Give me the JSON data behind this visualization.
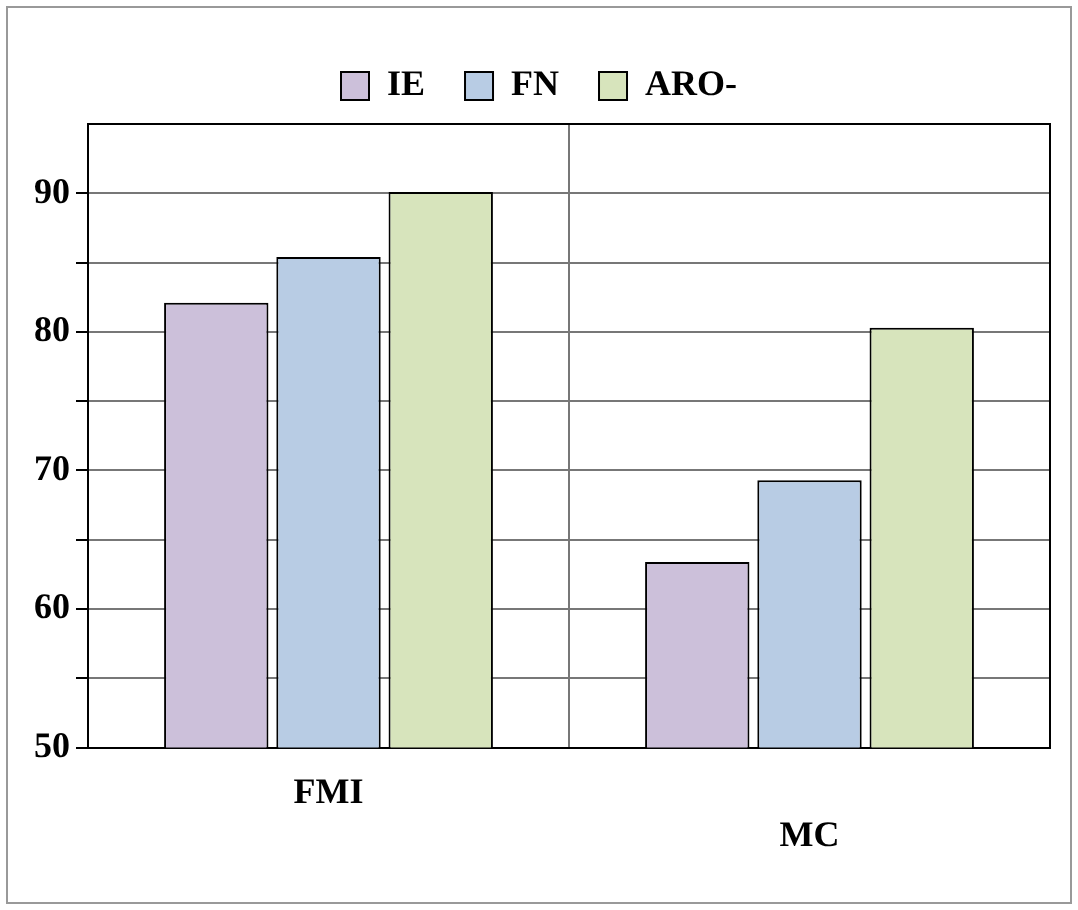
{
  "chart_data": {
    "type": "bar",
    "categories": [
      "FMI",
      "MC"
    ],
    "series": [
      {
        "name": "IE",
        "color": "#ccc0da",
        "values": [
          82.1,
          63.4
        ]
      },
      {
        "name": "FN",
        "color": "#b8cce4",
        "values": [
          85.4,
          69.3
        ]
      },
      {
        "name": "ARO-",
        "color": "#d7e4bc",
        "values": [
          90.1,
          80.3
        ]
      }
    ],
    "ylim": [
      50,
      95
    ],
    "yticks": [
      {
        "value": 50,
        "label": "50"
      },
      {
        "value": 55,
        "label": null
      },
      {
        "value": 60,
        "label": "60"
      },
      {
        "value": 65,
        "label": null
      },
      {
        "value": 70,
        "label": "70"
      },
      {
        "value": 75,
        "label": null
      },
      {
        "value": 80,
        "label": "80"
      },
      {
        "value": 85,
        "label": null
      },
      {
        "value": 90,
        "label": "90"
      }
    ],
    "grid": true,
    "legend": "top"
  }
}
